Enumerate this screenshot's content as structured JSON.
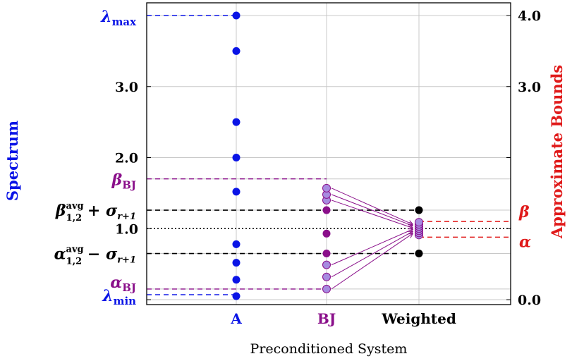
{
  "chart_data": {
    "type": "scatter",
    "title": "",
    "xlabel": "Preconditioned System",
    "ylabel_left": "Spectrum",
    "ylabel_right": "Approximate Bounds",
    "categories": [
      "A",
      "BJ",
      "Weighted"
    ],
    "ylim": [
      0,
      4.0
    ],
    "left_ticks": [
      {
        "value": 2.0,
        "label": "2.0"
      },
      {
        "value": 3.0,
        "label": "3.0"
      }
    ],
    "right_ticks": [
      {
        "value": 0.0,
        "label": "0.0"
      },
      {
        "value": 3.0,
        "label": "3.0"
      },
      {
        "value": 4.0,
        "label": "4.0"
      }
    ],
    "reference_line_label": "1.0",
    "series": [
      {
        "name": "A",
        "category": "A",
        "color": "#0a14e6",
        "values": [
          0.05,
          0.28,
          0.52,
          0.78,
          1.52,
          2.0,
          2.5,
          3.5,
          4.0
        ]
      },
      {
        "name": "BJ",
        "category": "BJ",
        "color": "#8a0f8a",
        "light_color": "#a78be0",
        "values_light": [
          0.15,
          0.32,
          0.49,
          1.4,
          1.48,
          1.57
        ],
        "values_dark": [
          0.65,
          0.93,
          1.26
        ]
      },
      {
        "name": "Weighted",
        "category": "Weighted",
        "color": "#000000",
        "light_color": "#a78be0",
        "values_light": [
          0.91,
          0.94,
          0.97,
          1.0,
          1.03,
          1.06,
          1.09
        ],
        "values_dark": [
          0.65,
          1.26
        ]
      }
    ],
    "bounds": {
      "lambda_max": {
        "value": 4.0,
        "base": "λ",
        "sub": "max",
        "color": "#0a14e6"
      },
      "lambda_min": {
        "value": 0.07,
        "base": "λ",
        "sub": "min",
        "color": "#0a14e6"
      },
      "beta_bj": {
        "value": 1.7,
        "base": "β",
        "sub": "BJ",
        "color": "#8a0f8a"
      },
      "alpha_bj": {
        "value": 0.15,
        "base": "α",
        "sub": "BJ",
        "color": "#8a0f8a"
      },
      "beta_avg": {
        "value": 1.26,
        "base": "β",
        "sup": "avg",
        "sub": "1,2",
        "tail": "+ σ",
        "tail_sub": "r+1",
        "color": "#000000"
      },
      "alpha_avg": {
        "value": 0.65,
        "base": "α",
        "sup": "avg",
        "sub": "1,2",
        "tail": "− σ",
        "tail_sub": "r+1",
        "color": "#000000"
      },
      "beta": {
        "value": 1.1,
        "label": "β",
        "color": "#e01a1a"
      },
      "alpha": {
        "value": 0.88,
        "label": "α",
        "color": "#e01a1a"
      }
    },
    "grid": true,
    "colors": {
      "A": "#0a14e6",
      "BJ": "#8a0f8a",
      "Weighted": "#000000",
      "bounds": "#e01a1a"
    }
  }
}
